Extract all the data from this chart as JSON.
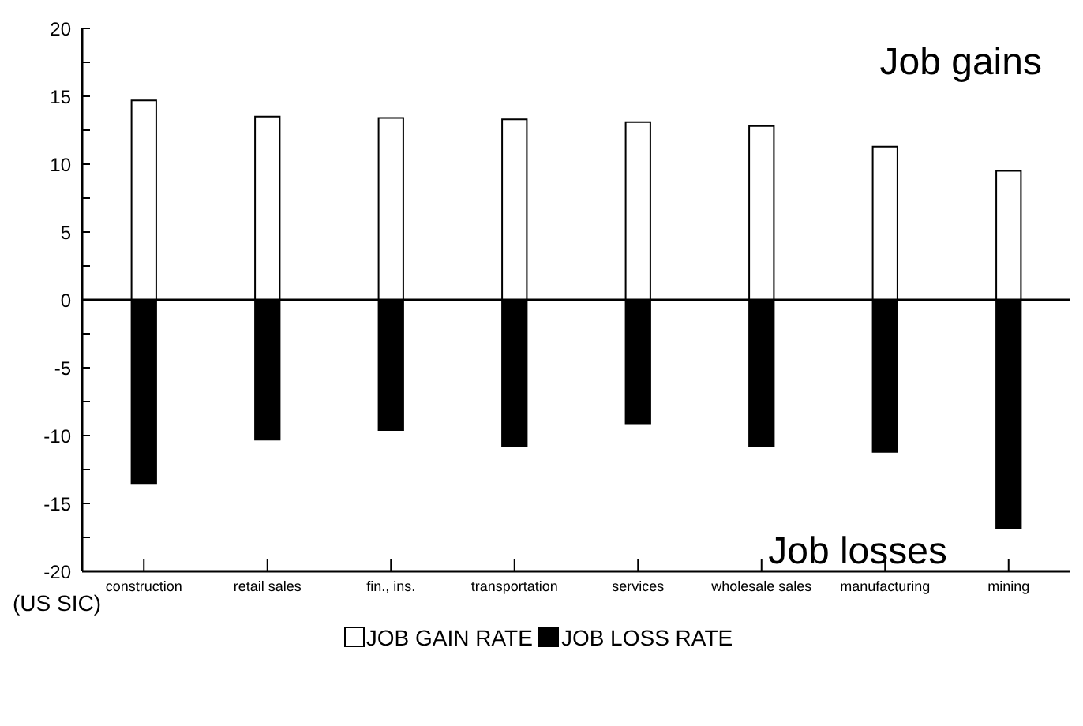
{
  "chart_data": {
    "type": "bar",
    "stacked": true,
    "xlabel": "(US SIC)",
    "categories": [
      "construction",
      "retail sales",
      "fin., ins.",
      "transportation",
      "services",
      "wholesale sales",
      "manufacturing",
      "mining"
    ],
    "series": [
      {
        "name": "JOB GAIN RATE",
        "color": "#ffffff",
        "values": [
          14.7,
          13.5,
          13.4,
          13.3,
          13.1,
          12.8,
          11.3,
          9.5
        ]
      },
      {
        "name": "JOB LOSS RATE",
        "color": "#000000",
        "values": [
          -13.5,
          -10.3,
          -9.6,
          -10.8,
          -9.1,
          -10.8,
          -11.2,
          -16.8
        ]
      }
    ],
    "ylim": [
      -20,
      20
    ],
    "yticks": [
      -20,
      {
        "value": -17.5,
        "label": null
      },
      -15,
      {
        "value": -12.5,
        "label": null
      },
      -10,
      {
        "value": -7.5,
        "label": null
      },
      -5,
      {
        "value": -2.5,
        "label": null
      },
      0,
      {
        "value": 2.5,
        "label": null
      },
      5,
      {
        "value": 7.5,
        "label": null
      },
      10,
      {
        "value": 12.5,
        "label": null
      },
      15,
      {
        "value": 17.5,
        "label": null
      },
      20
    ],
    "ref_lines": [
      {
        "axis": "y",
        "value": 0,
        "color": "#000000"
      }
    ],
    "annotations": [
      "Job gains",
      "Job losses"
    ],
    "legend": "bottom",
    "grid": false
  }
}
